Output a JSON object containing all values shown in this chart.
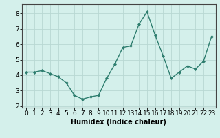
{
  "x": [
    0,
    1,
    2,
    3,
    4,
    5,
    6,
    7,
    8,
    9,
    10,
    11,
    12,
    13,
    14,
    15,
    16,
    17,
    18,
    19,
    20,
    21,
    22,
    23
  ],
  "y": [
    4.2,
    4.2,
    4.3,
    4.1,
    3.9,
    3.5,
    2.7,
    2.45,
    2.6,
    2.7,
    3.8,
    4.7,
    5.8,
    5.9,
    7.3,
    8.1,
    6.6,
    5.25,
    3.8,
    4.2,
    4.6,
    4.4,
    4.9,
    6.5
  ],
  "line_color": "#2d7d6e",
  "marker": "D",
  "markersize": 2.2,
  "linewidth": 1.0,
  "xlabel": "Humidex (Indice chaleur)",
  "xlim": [
    -0.5,
    23.5
  ],
  "ylim": [
    1.9,
    8.6
  ],
  "yticks": [
    2,
    3,
    4,
    5,
    6,
    7,
    8
  ],
  "xticks": [
    0,
    1,
    2,
    3,
    4,
    5,
    6,
    7,
    8,
    9,
    10,
    11,
    12,
    13,
    14,
    15,
    16,
    17,
    18,
    19,
    20,
    21,
    22,
    23
  ],
  "bg_color": "#d4f0eb",
  "grid_color": "#b8d8d3",
  "xlabel_fontsize": 7,
  "tick_fontsize": 6.5
}
